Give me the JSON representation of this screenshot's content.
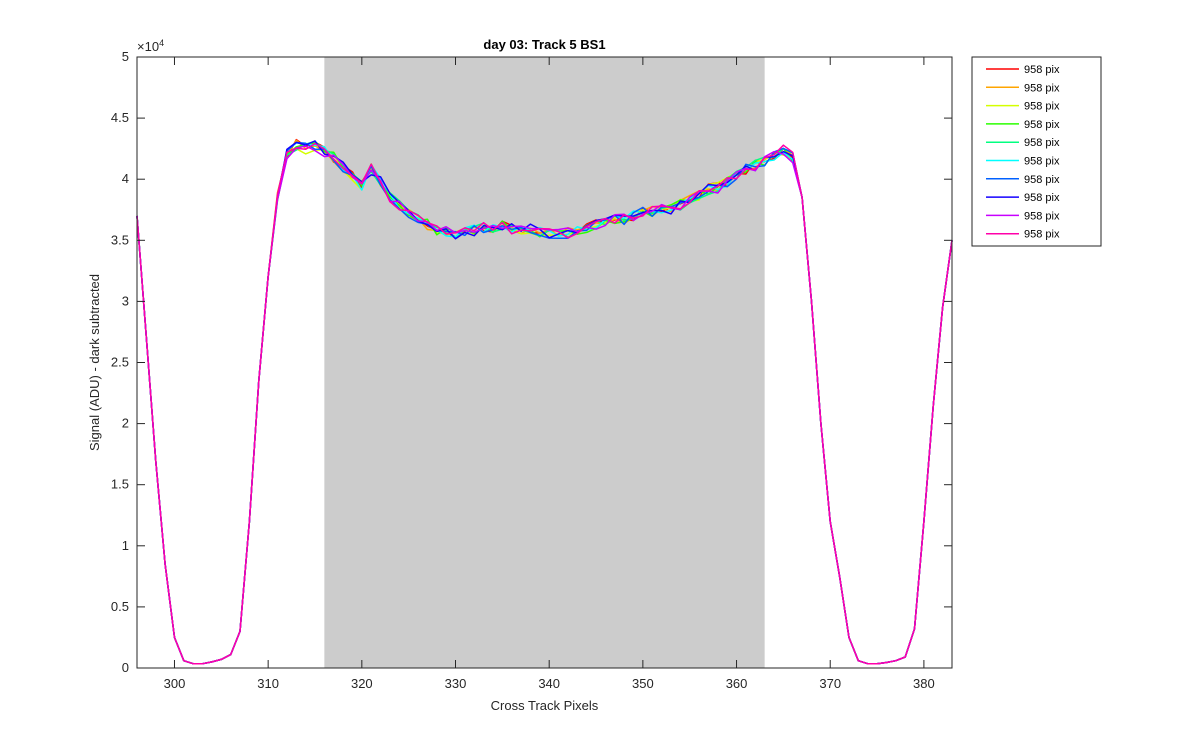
{
  "chart_data": {
    "type": "line",
    "title": "day 03: Track 5  BS1",
    "xlabel": "Cross Track Pixels",
    "ylabel": "Signal (ADU) - dark subtracted",
    "y_exponent_label": "×10",
    "y_exponent_power": "4",
    "xlim": [
      296,
      383
    ],
    "ylim": [
      0,
      50000
    ],
    "x_ticks": [
      300,
      310,
      320,
      330,
      340,
      350,
      360,
      370,
      380
    ],
    "y_ticks": [
      0,
      5000,
      10000,
      15000,
      20000,
      25000,
      30000,
      35000,
      40000,
      45000,
      50000
    ],
    "y_tick_labels": [
      "0",
      "0.5",
      "1",
      "1.5",
      "2",
      "2.5",
      "3",
      "3.5",
      "4",
      "4.5",
      "5"
    ],
    "shaded_region": {
      "x_start": 316,
      "x_end": 363,
      "color": "#cccccc"
    },
    "grid": false,
    "legend_position": "outside-top-right",
    "base_profile": {
      "x": [
        296,
        297,
        298,
        299,
        300,
        301,
        302,
        303,
        304,
        305,
        306,
        307,
        308,
        309,
        310,
        311,
        312,
        313,
        314,
        315,
        316,
        317,
        318,
        319,
        320,
        321,
        322,
        323,
        324,
        325,
        326,
        327,
        328,
        329,
        330,
        331,
        332,
        333,
        334,
        335,
        336,
        337,
        338,
        339,
        340,
        341,
        342,
        343,
        344,
        345,
        346,
        347,
        348,
        349,
        350,
        351,
        352,
        353,
        354,
        355,
        356,
        357,
        358,
        359,
        360,
        361,
        362,
        363,
        364,
        365,
        366,
        367,
        368,
        369,
        370,
        371,
        372,
        373,
        374,
        375,
        376,
        377,
        378,
        379,
        380,
        381,
        382,
        383
      ],
      "y": [
        37000,
        27000,
        17000,
        8500,
        2500,
        600,
        350,
        350,
        500,
        700,
        1100,
        3000,
        12000,
        23500,
        32000,
        38500,
        42000,
        42800,
        42500,
        42700,
        42300,
        41800,
        41000,
        40200,
        39500,
        40800,
        39800,
        38500,
        37800,
        37300,
        36700,
        36300,
        35900,
        35700,
        35500,
        35600,
        35800,
        36000,
        35900,
        36300,
        35900,
        35900,
        36000,
        35600,
        35500,
        35600,
        35600,
        35700,
        35900,
        36300,
        36400,
        36800,
        36700,
        37000,
        37300,
        37400,
        37500,
        37600,
        37900,
        38300,
        38700,
        39200,
        39300,
        39800,
        40300,
        40800,
        41100,
        41400,
        41800,
        42400,
        41800,
        38500,
        30000,
        20000,
        12000,
        7500,
        2500,
        600,
        350,
        350,
        450,
        600,
        900,
        3200,
        12000,
        21500,
        29500,
        35000
      ]
    },
    "series": [
      {
        "name": "958 pix",
        "color": "#ff0000"
      },
      {
        "name": "958 pix",
        "color": "#ffa500"
      },
      {
        "name": "958 pix",
        "color": "#d4ff00"
      },
      {
        "name": "958 pix",
        "color": "#2bff00"
      },
      {
        "name": "958 pix",
        "color": "#00ff80"
      },
      {
        "name": "958 pix",
        "color": "#00ffff"
      },
      {
        "name": "958 pix",
        "color": "#0060ff"
      },
      {
        "name": "958 pix",
        "color": "#1400ff"
      },
      {
        "name": "958 pix",
        "color": "#c800ff"
      },
      {
        "name": "958 pix",
        "color": "#ff00aa"
      }
    ]
  }
}
